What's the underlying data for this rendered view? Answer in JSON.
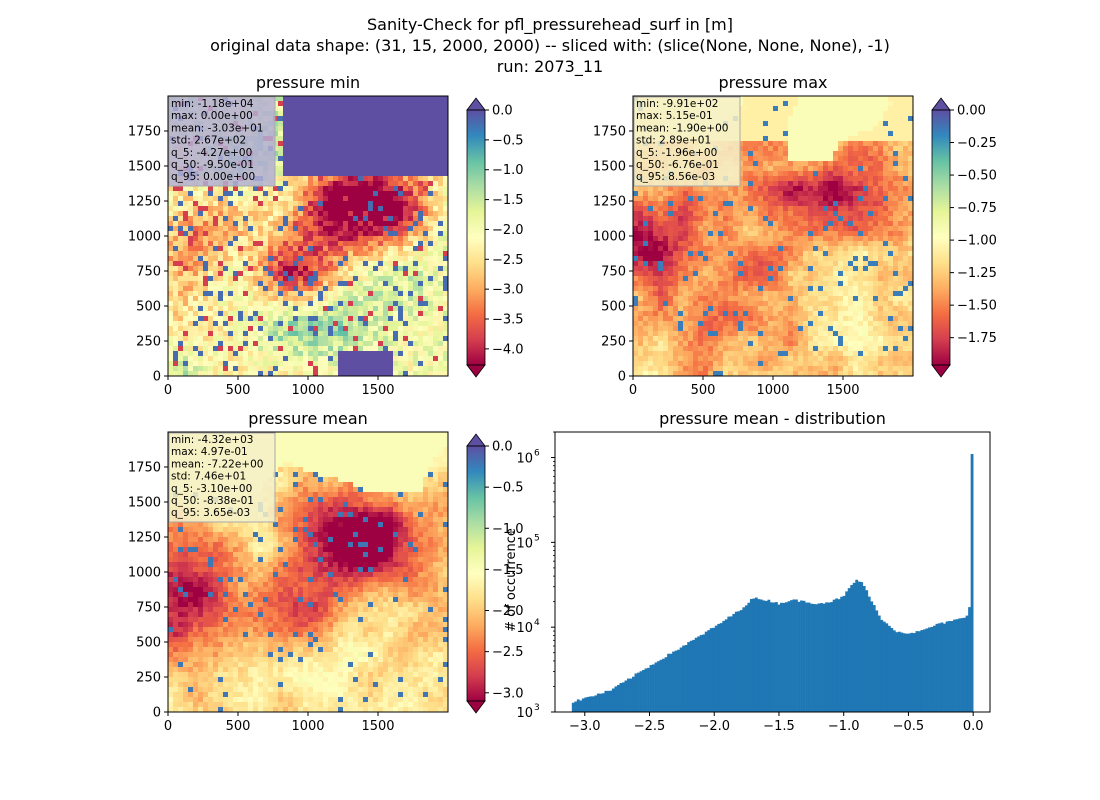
{
  "figure": {
    "title_lines": [
      "Sanity-Check for pfl_pressurehead_surf in [m]",
      "original data shape: (31, 15, 2000, 2000) -- sliced with: (slice(None, None, None), -1)",
      "run: 2073_11"
    ]
  },
  "chart_data": [
    {
      "type": "heatmap",
      "title": "pressure min",
      "colormap": "Spectral",
      "extend": "both",
      "extend_top_color": "#5e4fa2",
      "extend_bottom_color": "#9e0142",
      "x_ticks": [
        "0",
        "500",
        "1000",
        "1500"
      ],
      "y_ticks": [
        "0",
        "250",
        "500",
        "750",
        "1000",
        "1250",
        "1500",
        "1750"
      ],
      "xlim": [
        0,
        2000
      ],
      "ylim": [
        0,
        2000
      ],
      "color_range": [
        -4.27,
        0.0
      ],
      "colorbar_ticks": [
        "0.0",
        "−0.5",
        "−1.0",
        "−1.5",
        "−2.0",
        "−2.5",
        "−3.0",
        "−3.5",
        "−4.0"
      ],
      "colorbar_values": [
        0.0,
        -0.5,
        -1.0,
        -1.5,
        -2.0,
        -2.5,
        -3.0,
        -3.5,
        -4.0
      ],
      "stats_lines": [
        "min: -1.18e+04",
        "max: 0.00e+00",
        "mean: -3.03e+01",
        "std: 2.67e+02",
        "q_5: -4.27e+00",
        "q_50: -9.50e-01",
        "q_95: 0.00e+00"
      ],
      "stats_box_color": "#b3aed4",
      "dominant_levels": [
        0.45,
        0.55,
        0.6,
        0.35,
        0.2,
        0.9
      ]
    },
    {
      "type": "heatmap",
      "title": "pressure max",
      "colormap": "Spectral",
      "extend": "both",
      "extend_top_color": "#5e4fa2",
      "extend_bottom_color": "#9e0142",
      "x_ticks": [
        "0",
        "500",
        "1000",
        "1500"
      ],
      "y_ticks": [
        "0",
        "250",
        "500",
        "750",
        "1000",
        "1250",
        "1500",
        "1750"
      ],
      "xlim": [
        0,
        2000
      ],
      "ylim": [
        0,
        2000
      ],
      "color_range": [
        -1.96,
        0.0
      ],
      "colorbar_ticks": [
        "0.00",
        "−0.25",
        "−0.50",
        "−0.75",
        "−1.00",
        "−1.25",
        "−1.50",
        "−1.75"
      ],
      "colorbar_values": [
        0.0,
        -0.25,
        -0.5,
        -0.75,
        -1.0,
        -1.25,
        -1.5,
        -1.75
      ],
      "stats_lines": [
        "min: -9.91e+02",
        "max: 5.15e-01",
        "mean: -1.90e+00",
        "std: 2.89e+01",
        "q_5: -1.96e+00",
        "q_50: -6.76e-01",
        "q_95: 8.56e-03"
      ],
      "stats_box_color": "#f5f0c8"
    },
    {
      "type": "heatmap",
      "title": "pressure mean",
      "colormap": "Spectral",
      "extend": "both",
      "extend_top_color": "#5e4fa2",
      "extend_bottom_color": "#9e0142",
      "x_ticks": [
        "0",
        "500",
        "1000",
        "1500"
      ],
      "y_ticks": [
        "0",
        "250",
        "500",
        "750",
        "1000",
        "1250",
        "1500",
        "1750"
      ],
      "xlim": [
        0,
        2000
      ],
      "ylim": [
        0,
        2000
      ],
      "color_range": [
        -3.1,
        0.0
      ],
      "colorbar_ticks": [
        "0.0",
        "−0.5",
        "−1.0",
        "−1.5",
        "−2.0",
        "−2.5",
        "−3.0"
      ],
      "colorbar_values": [
        0.0,
        -0.5,
        -1.0,
        -1.5,
        -2.0,
        -2.5,
        -3.0
      ],
      "stats_lines": [
        "min: -4.32e+03",
        "max: 4.97e-01",
        "mean: -7.22e+00",
        "std: 7.46e+01",
        "q_5: -3.10e+00",
        "q_50: -8.38e-01",
        "q_95: 3.65e-03"
      ],
      "stats_box_color": "#f5f0c8"
    },
    {
      "type": "bar",
      "title": "pressure mean - distribution",
      "ylabel": "# of occurrence",
      "xlabel": "",
      "y_scale": "log",
      "xlim": [
        -3.23,
        0.13
      ],
      "ylim": [
        1000,
        2000000
      ],
      "bar_color": "#1f77b4",
      "x_ticks": [
        "−3.0",
        "−2.5",
        "−2.0",
        "−1.5",
        "−1.0",
        "−0.5",
        "0.0"
      ],
      "x_tick_values": [
        -3.0,
        -2.5,
        -2.0,
        -1.5,
        -1.0,
        -0.5,
        0.0
      ],
      "y_ticks": [
        "10",
        "10",
        "10",
        "10"
      ],
      "y_tick_exponents": [
        "3",
        "4",
        "5",
        "6"
      ],
      "y_tick_values": [
        1000,
        10000,
        100000,
        1000000
      ],
      "bins": {
        "start": -3.1,
        "end": 0.0,
        "count": 160
      },
      "profile_x": [
        -3.1,
        -3.0,
        -2.8,
        -2.6,
        -2.4,
        -2.2,
        -2.0,
        -1.8,
        -1.7,
        -1.6,
        -1.5,
        -1.4,
        -1.3,
        -1.2,
        -1.1,
        -1.0,
        -0.95,
        -0.9,
        -0.85,
        -0.8,
        -0.7,
        -0.6,
        -0.5,
        -0.4,
        -0.3,
        -0.2,
        -0.1,
        -0.05,
        -0.02,
        -0.005
      ],
      "profile_y": [
        1300,
        1450,
        1800,
        2800,
        4300,
        6500,
        10000,
        16000,
        22000,
        21000,
        19000,
        21000,
        20000,
        19000,
        20000,
        23000,
        30000,
        36000,
        33000,
        22000,
        12000,
        9000,
        8500,
        9000,
        10500,
        11500,
        12500,
        13500,
        20000,
        1100000
      ]
    }
  ]
}
